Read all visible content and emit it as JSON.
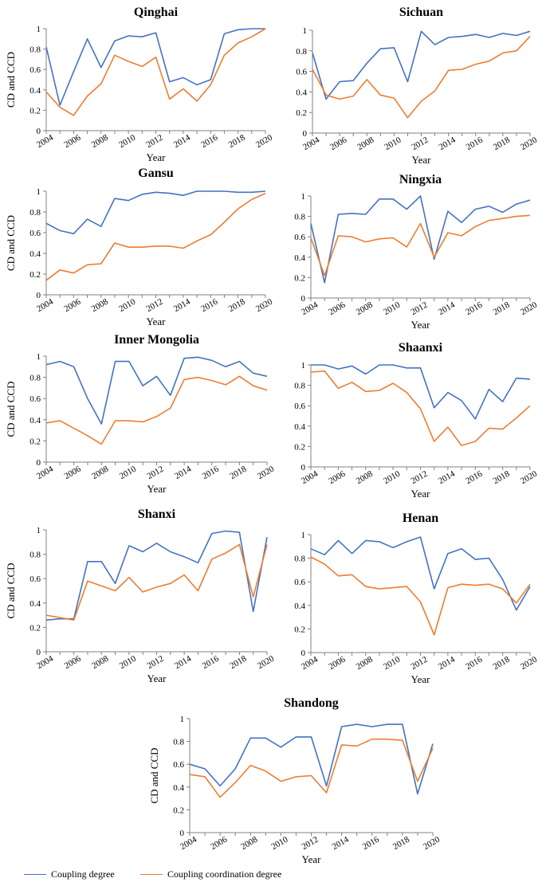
{
  "colors": {
    "coupling": "#4472C4",
    "coordination": "#ED7D31",
    "axis": "#808080"
  },
  "legend": {
    "coupling_label": "Coupling degree",
    "coordination_label": "Coupling coordination degree"
  },
  "chart_data": [
    {
      "type": "line",
      "title": "Qinghai",
      "xlabel": "Year",
      "ylabel": "CD and CCD",
      "ylim": [
        0,
        1
      ],
      "yticks": [
        "0",
        "0.2",
        "0.4",
        "0.6",
        "0.8",
        "1"
      ],
      "xticks": [
        "2004",
        "2006",
        "2008",
        "2010",
        "2012",
        "2014",
        "2016",
        "2018",
        "2020"
      ],
      "x": [
        2004,
        2005,
        2006,
        2007,
        2008,
        2009,
        2010,
        2011,
        2012,
        2013,
        2014,
        2015,
        2016,
        2017,
        2018,
        2019,
        2020
      ],
      "series": [
        {
          "name": "Coupling degree",
          "values": [
            0.82,
            0.25,
            0.58,
            0.9,
            0.62,
            0.88,
            0.93,
            0.92,
            0.96,
            0.48,
            0.52,
            0.45,
            0.5,
            0.95,
            0.99,
            1.0,
            1.0
          ]
        },
        {
          "name": "Coupling coordination degree",
          "values": [
            0.38,
            0.23,
            0.15,
            0.34,
            0.46,
            0.74,
            0.68,
            0.63,
            0.72,
            0.31,
            0.41,
            0.29,
            0.45,
            0.74,
            0.86,
            0.92,
            1.0
          ]
        }
      ]
    },
    {
      "type": "line",
      "title": "Sichuan",
      "xlabel": "Year",
      "ylabel": "",
      "ylim": [
        0,
        1
      ],
      "yticks": [
        "0",
        "0.2",
        "0.4",
        "0.6",
        "0.8",
        "1"
      ],
      "xticks": [
        "2004",
        "2006",
        "2008",
        "2010",
        "2012",
        "2014",
        "2016",
        "2018",
        "2020"
      ],
      "x": [
        2004,
        2005,
        2006,
        2007,
        2008,
        2009,
        2010,
        2011,
        2012,
        2013,
        2014,
        2015,
        2016,
        2017,
        2018,
        2019,
        2020
      ],
      "series": [
        {
          "name": "Coupling degree",
          "values": [
            0.78,
            0.33,
            0.5,
            0.51,
            0.68,
            0.82,
            0.83,
            0.5,
            0.99,
            0.86,
            0.93,
            0.94,
            0.96,
            0.93,
            0.97,
            0.95,
            0.99
          ]
        },
        {
          "name": "Coupling coordination degree",
          "values": [
            0.62,
            0.37,
            0.33,
            0.36,
            0.52,
            0.37,
            0.34,
            0.15,
            0.31,
            0.41,
            0.61,
            0.62,
            0.67,
            0.7,
            0.78,
            0.8,
            0.94
          ]
        }
      ]
    },
    {
      "type": "line",
      "title": "Gansu",
      "xlabel": "Year",
      "ylabel": "CD and CCD",
      "ylim": [
        0,
        1
      ],
      "yticks": [
        "0",
        "0.2",
        "0.4",
        "0.6",
        "0.8",
        "1"
      ],
      "xticks": [
        "2004",
        "2006",
        "2008",
        "2010",
        "2012",
        "2014",
        "2016",
        "2018",
        "2020"
      ],
      "x": [
        2004,
        2005,
        2006,
        2007,
        2008,
        2009,
        2010,
        2011,
        2012,
        2013,
        2014,
        2015,
        2016,
        2017,
        2018,
        2019,
        2020
      ],
      "series": [
        {
          "name": "Coupling degree",
          "values": [
            0.69,
            0.62,
            0.59,
            0.73,
            0.66,
            0.93,
            0.91,
            0.97,
            0.99,
            0.98,
            0.96,
            1.0,
            1.0,
            1.0,
            0.99,
            0.99,
            1.0
          ]
        },
        {
          "name": "Coupling coordination degree",
          "values": [
            0.14,
            0.24,
            0.21,
            0.29,
            0.3,
            0.5,
            0.46,
            0.46,
            0.47,
            0.47,
            0.45,
            0.52,
            0.58,
            0.7,
            0.83,
            0.92,
            0.98
          ]
        }
      ]
    },
    {
      "type": "line",
      "title": "Ningxia",
      "xlabel": "Year",
      "ylabel": "",
      "ylim": [
        0,
        1
      ],
      "yticks": [
        "0",
        "0.2",
        "0.4",
        "0.6",
        "0.8",
        "1"
      ],
      "xticks": [
        "2004",
        "2006",
        "2008",
        "2010",
        "2012",
        "2014",
        "2016",
        "2018",
        "2020"
      ],
      "x": [
        2004,
        2005,
        2006,
        2007,
        2008,
        2009,
        2010,
        2011,
        2012,
        2013,
        2014,
        2015,
        2016,
        2017,
        2018,
        2019,
        2020
      ],
      "series": [
        {
          "name": "Coupling degree",
          "values": [
            0.73,
            0.15,
            0.82,
            0.83,
            0.82,
            0.97,
            0.97,
            0.87,
            1.0,
            0.38,
            0.85,
            0.74,
            0.87,
            0.9,
            0.84,
            0.92,
            0.96
          ]
        },
        {
          "name": "Coupling coordination degree",
          "values": [
            0.59,
            0.22,
            0.61,
            0.6,
            0.55,
            0.58,
            0.59,
            0.5,
            0.73,
            0.4,
            0.64,
            0.61,
            0.7,
            0.76,
            0.78,
            0.8,
            0.81
          ]
        }
      ]
    },
    {
      "type": "line",
      "title": "Inner Mongolia",
      "xlabel": "Year",
      "ylabel": "CD and CCD",
      "ylim": [
        0,
        1
      ],
      "yticks": [
        "0",
        "0.2",
        "0.4",
        "0.6",
        "0.8",
        "1"
      ],
      "xticks": [
        "2004",
        "2006",
        "2008",
        "2010",
        "2012",
        "2014",
        "2016",
        "2018",
        "2020"
      ],
      "x": [
        2004,
        2005,
        2006,
        2007,
        2008,
        2009,
        2010,
        2011,
        2012,
        2013,
        2014,
        2015,
        2016,
        2017,
        2018,
        2019,
        2020
      ],
      "series": [
        {
          "name": "Coupling degree",
          "values": [
            0.92,
            0.95,
            0.9,
            0.6,
            0.36,
            0.95,
            0.95,
            0.72,
            0.81,
            0.63,
            0.98,
            0.99,
            0.96,
            0.9,
            0.95,
            0.84,
            0.81
          ]
        },
        {
          "name": "Coupling coordination degree",
          "values": [
            0.37,
            0.39,
            0.32,
            0.25,
            0.17,
            0.39,
            0.39,
            0.38,
            0.43,
            0.51,
            0.78,
            0.8,
            0.77,
            0.73,
            0.81,
            0.72,
            0.68
          ]
        }
      ]
    },
    {
      "type": "line",
      "title": "Shaanxi",
      "xlabel": "Year",
      "ylabel": "",
      "ylim": [
        0,
        1
      ],
      "yticks": [
        "0",
        "0.2",
        "0.4",
        "0.6",
        "0.8",
        "1"
      ],
      "xticks": [
        "2004",
        "2006",
        "2008",
        "2010",
        "2012",
        "2014",
        "2016",
        "2018",
        "2020"
      ],
      "x": [
        2004,
        2005,
        2006,
        2007,
        2008,
        2009,
        2010,
        2011,
        2012,
        2013,
        2014,
        2015,
        2016,
        2017,
        2018,
        2019,
        2020
      ],
      "series": [
        {
          "name": "Coupling degree",
          "values": [
            1.0,
            1.0,
            0.96,
            0.99,
            0.91,
            1.0,
            1.0,
            0.97,
            0.97,
            0.58,
            0.73,
            0.65,
            0.47,
            0.76,
            0.64,
            0.87,
            0.86
          ]
        },
        {
          "name": "Coupling coordination degree",
          "values": [
            0.93,
            0.94,
            0.77,
            0.83,
            0.74,
            0.75,
            0.82,
            0.73,
            0.57,
            0.25,
            0.39,
            0.21,
            0.25,
            0.38,
            0.37,
            0.48,
            0.6
          ]
        }
      ]
    },
    {
      "type": "line",
      "title": "Shanxi",
      "xlabel": "Year",
      "ylabel": "CD and CCD",
      "ylim": [
        0,
        1
      ],
      "yticks": [
        "0",
        "0.2",
        "0.4",
        "0.6",
        "0.8",
        "1"
      ],
      "xticks": [
        "2004",
        "2006",
        "2008",
        "2010",
        "2012",
        "2014",
        "2016",
        "2018",
        "2020"
      ],
      "x": [
        2004,
        2005,
        2006,
        2007,
        2008,
        2009,
        2010,
        2011,
        2012,
        2013,
        2014,
        2015,
        2016,
        2017,
        2018,
        2019,
        2020
      ],
      "series": [
        {
          "name": "Coupling degree",
          "values": [
            0.26,
            0.27,
            0.27,
            0.74,
            0.74,
            0.56,
            0.87,
            0.82,
            0.89,
            0.82,
            0.78,
            0.73,
            0.97,
            0.99,
            0.98,
            0.33,
            0.94
          ]
        },
        {
          "name": "Coupling coordination degree",
          "values": [
            0.3,
            0.28,
            0.26,
            0.58,
            0.54,
            0.5,
            0.61,
            0.49,
            0.53,
            0.56,
            0.63,
            0.5,
            0.76,
            0.81,
            0.88,
            0.45,
            0.88
          ]
        }
      ]
    },
    {
      "type": "line",
      "title": "Henan",
      "xlabel": "Year",
      "ylabel": "",
      "ylim": [
        0,
        1
      ],
      "yticks": [
        "0",
        "0.2",
        "0.4",
        "0.6",
        "0.8",
        "1"
      ],
      "xticks": [
        "2004",
        "2006",
        "2008",
        "2010",
        "2012",
        "2014",
        "2016",
        "2018",
        "2020"
      ],
      "x": [
        2004,
        2005,
        2006,
        2007,
        2008,
        2009,
        2010,
        2011,
        2012,
        2013,
        2014,
        2015,
        2016,
        2017,
        2018,
        2019,
        2020
      ],
      "series": [
        {
          "name": "Coupling degree",
          "values": [
            0.88,
            0.83,
            0.95,
            0.84,
            0.95,
            0.94,
            0.89,
            0.94,
            0.98,
            0.54,
            0.84,
            0.88,
            0.79,
            0.8,
            0.62,
            0.36,
            0.56
          ]
        },
        {
          "name": "Coupling coordination degree",
          "values": [
            0.81,
            0.75,
            0.65,
            0.66,
            0.56,
            0.54,
            0.55,
            0.56,
            0.43,
            0.15,
            0.55,
            0.58,
            0.57,
            0.58,
            0.54,
            0.42,
            0.58
          ]
        }
      ]
    },
    {
      "type": "line",
      "title": "Shandong",
      "xlabel": "Year",
      "ylabel": "CD and CCD",
      "ylim": [
        0,
        1
      ],
      "yticks": [
        "0",
        "0.2",
        "0.4",
        "0.6",
        "0.8",
        "1"
      ],
      "xticks": [
        "2004",
        "2006",
        "2008",
        "2010",
        "2012",
        "2014",
        "2016",
        "2018",
        "2020"
      ],
      "x": [
        2004,
        2005,
        2006,
        2007,
        2008,
        2009,
        2010,
        2011,
        2012,
        2013,
        2014,
        2015,
        2016,
        2017,
        2018,
        2019,
        2020
      ],
      "series": [
        {
          "name": "Coupling degree",
          "values": [
            0.6,
            0.56,
            0.41,
            0.56,
            0.83,
            0.83,
            0.75,
            0.84,
            0.84,
            0.41,
            0.93,
            0.95,
            0.93,
            0.95,
            0.95,
            0.34,
            0.78
          ]
        },
        {
          "name": "Coupling coordination degree",
          "values": [
            0.51,
            0.49,
            0.31,
            0.44,
            0.59,
            0.54,
            0.45,
            0.49,
            0.5,
            0.35,
            0.77,
            0.76,
            0.82,
            0.82,
            0.81,
            0.45,
            0.74
          ]
        }
      ]
    }
  ]
}
